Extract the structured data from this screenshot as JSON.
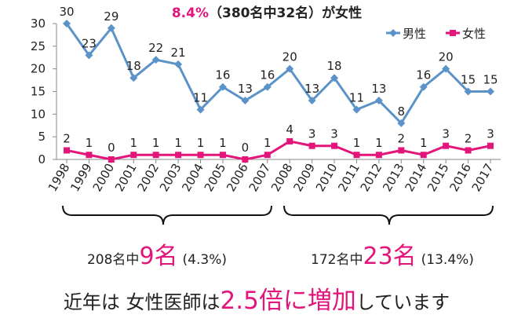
{
  "title": {
    "highlight": "8.4%",
    "rest": "（380名中32名）が女性"
  },
  "colors": {
    "male": "#5b93c9",
    "female": "#e3157a",
    "accent": "#e3157a"
  },
  "chart_data": {
    "type": "line",
    "x": [
      "1998",
      "1999",
      "2000",
      "2001",
      "2002",
      "2003",
      "2004",
      "2005",
      "2006",
      "2007",
      "2008",
      "2009",
      "2010",
      "2011",
      "2012",
      "2013",
      "2014",
      "2015",
      "2016",
      "2017"
    ],
    "series": [
      {
        "name": "男性",
        "values": [
          30,
          23,
          29,
          18,
          22,
          21,
          11,
          16,
          13,
          16,
          20,
          13,
          18,
          11,
          13,
          8,
          16,
          20,
          15,
          15
        ]
      },
      {
        "name": "女性",
        "values": [
          2,
          1,
          0,
          1,
          1,
          1,
          1,
          1,
          0,
          1,
          4,
          3,
          3,
          1,
          1,
          2,
          1,
          3,
          2,
          3
        ]
      }
    ],
    "ylim": [
      0,
      30
    ],
    "yticks": [
      0,
      5,
      10,
      15,
      20,
      25,
      30
    ],
    "grid": false,
    "legend": "top-right"
  },
  "captions": {
    "left": {
      "pre": "208名中",
      "big": "9名",
      "pct": "(4.3%)"
    },
    "right": {
      "pre": "172名中",
      "big": "23名",
      "pct": "(13.4%)"
    }
  },
  "footer": {
    "pre": "近年は 女性医師は",
    "big": "2.5倍に増加",
    "post": "しています"
  }
}
